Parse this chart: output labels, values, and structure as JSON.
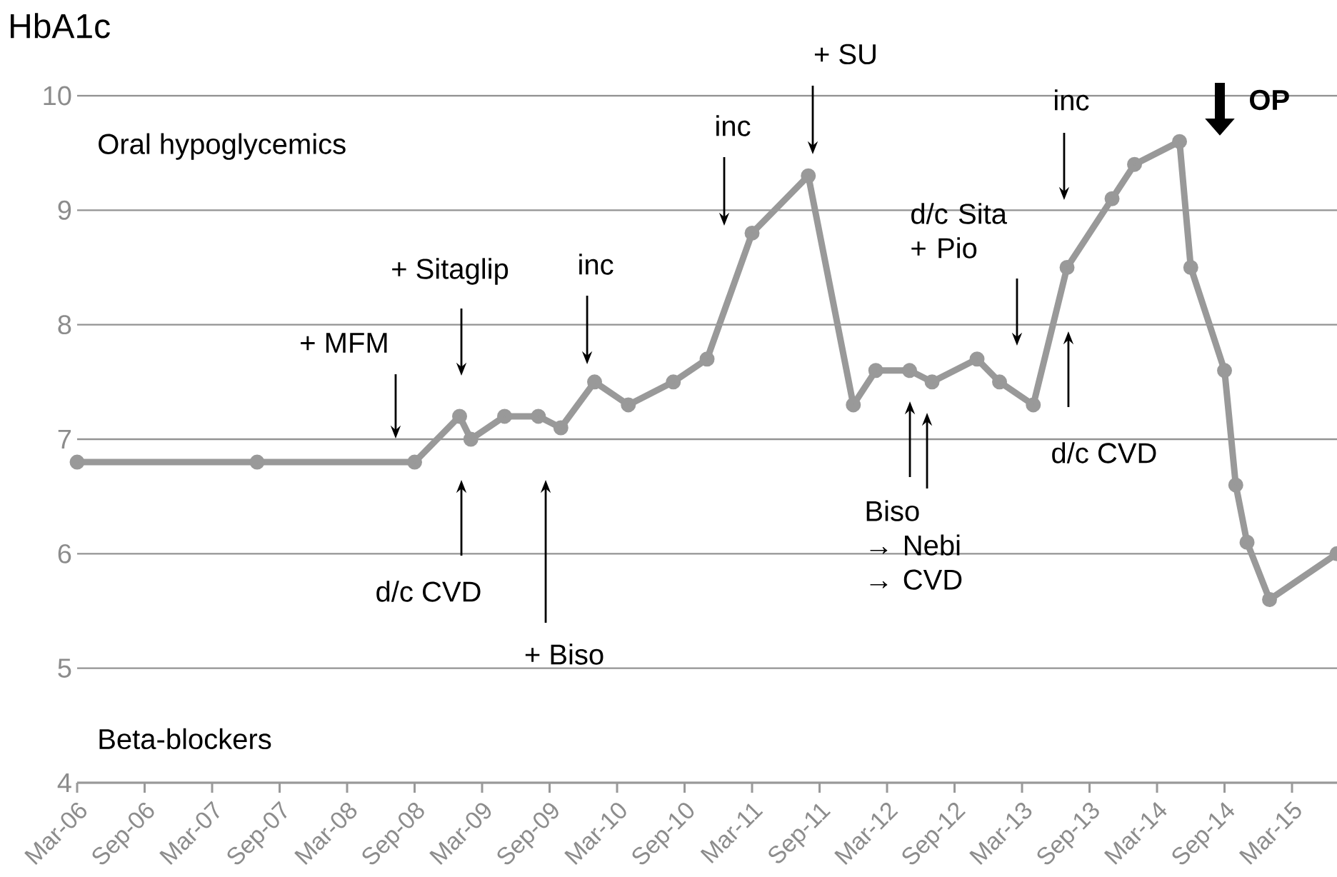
{
  "chart_data": {
    "type": "line",
    "ylabel": "HbA1c",
    "x": [
      "2006-03",
      "2007-07",
      "2008-09",
      "2009-01",
      "2009-02",
      "2009-05",
      "2009-08",
      "2009-10",
      "2010-01",
      "2010-04",
      "2010-08",
      "2010-11",
      "2011-03",
      "2011-08",
      "2011-12",
      "2012-02",
      "2012-05",
      "2012-07",
      "2012-11",
      "2013-01",
      "2013-04",
      "2013-07",
      "2013-11",
      "2014-01",
      "2014-05",
      "2014-06",
      "2014-09",
      "2014-10",
      "2014-11",
      "2015-01",
      "2015-07"
    ],
    "series": [
      {
        "color": "#999999",
        "values": [
          6.8,
          6.8,
          6.8,
          7.2,
          7.0,
          7.2,
          7.2,
          7.1,
          7.5,
          7.3,
          7.5,
          7.7,
          8.8,
          9.3,
          7.3,
          7.6,
          7.6,
          7.5,
          7.7,
          7.5,
          7.3,
          8.5,
          9.1,
          9.4,
          9.6,
          8.5,
          7.6,
          6.6,
          6.1,
          5.6,
          6.0
        ]
      }
    ],
    "xlim": [
      "2006-03",
      "2015-07"
    ],
    "xticks": [
      {
        "value": "2006-03",
        "label": "Mar-06"
      },
      {
        "value": "2006-09",
        "label": "Sep-06"
      },
      {
        "value": "2007-03",
        "label": "Mar-07"
      },
      {
        "value": "2007-09",
        "label": "Sep-07"
      },
      {
        "value": "2008-03",
        "label": "Mar-08"
      },
      {
        "value": "2008-09",
        "label": "Sep-08"
      },
      {
        "value": "2009-03",
        "label": "Mar-09"
      },
      {
        "value": "2009-09",
        "label": "Sep-09"
      },
      {
        "value": "2010-03",
        "label": "Mar-10"
      },
      {
        "value": "2010-09",
        "label": "Sep-10"
      },
      {
        "value": "2011-03",
        "label": "Mar-11"
      },
      {
        "value": "2011-09",
        "label": "Sep-11"
      },
      {
        "value": "2012-03",
        "label": "Mar-12"
      },
      {
        "value": "2012-09",
        "label": "Sep-12"
      },
      {
        "value": "2013-03",
        "label": "Mar-13"
      },
      {
        "value": "2013-09",
        "label": "Sep-13"
      },
      {
        "value": "2014-03",
        "label": "Mar-14"
      },
      {
        "value": "2014-09",
        "label": "Sep-14"
      },
      {
        "value": "2015-03",
        "label": "Mar-15"
      }
    ],
    "ylim": [
      4,
      10
    ],
    "yticks": [
      4,
      5,
      6,
      7,
      8,
      9,
      10
    ],
    "grid": "y",
    "marker": "circle",
    "line_style": "solid",
    "annotations": [
      "Oral hypoglycemics",
      "Beta-blockers",
      "+ MFM",
      "+ Sitaglip",
      "inc",
      "inc",
      "+ SU",
      "d/c Sita + Pio",
      "inc",
      "OP",
      "d/c CVD",
      "+ Biso",
      "Biso → Nebi → CVD",
      "d/c CVD"
    ]
  }
}
